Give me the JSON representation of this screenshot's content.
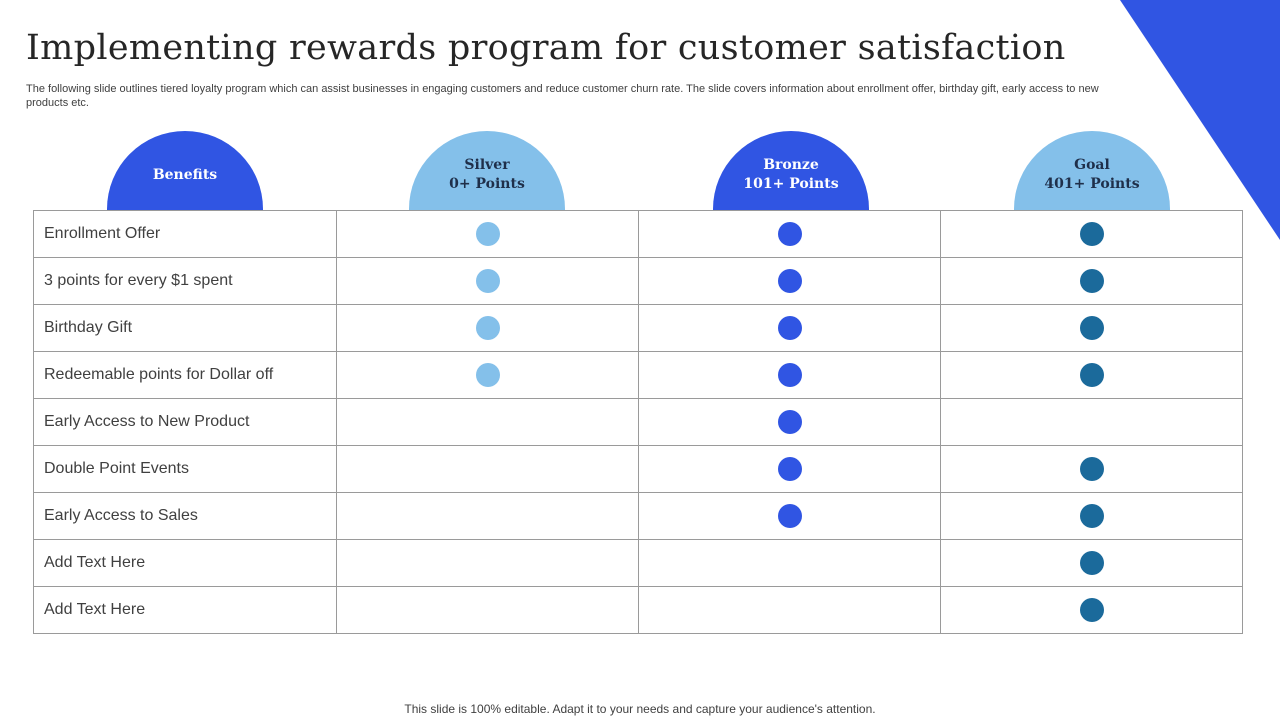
{
  "slide": {
    "title": "Implementing rewards program for customer satisfaction",
    "subtitle": "The following slide outlines tiered loyalty program which can assist businesses in engaging customers and reduce customer churn rate. The slide covers information about enrollment offer, birthday gift, early access to new  products etc.",
    "footer": "This slide is 100% editable. Adapt it to your needs and capture your audience's attention."
  },
  "colors": {
    "accent": "#3055e3",
    "silver": "#84c0ea",
    "bronze": "#3055e3",
    "gold": "#1b6a9b",
    "head_text_light": "#ffffff",
    "head_text_dark": "#1f2f4a"
  },
  "headers": {
    "benefits": "Benefits",
    "silver": "Silver\n0+ Points",
    "bronze": "Bronze\n101+ Points",
    "gold": "Goal\n401+ Points"
  },
  "icons": {
    "check_dot": "filled-circle-icon"
  },
  "rows": [
    {
      "label": "Enrollment  Offer",
      "silver": true,
      "bronze": true,
      "gold": true
    },
    {
      "label": "3 points for every  $1 spent",
      "silver": true,
      "bronze": true,
      "gold": true
    },
    {
      "label": "Birthday Gift",
      "silver": true,
      "bronze": true,
      "gold": true
    },
    {
      "label": "Redeemable points for Dollar off",
      "silver": true,
      "bronze": true,
      "gold": true
    },
    {
      "label": "Early Access to New Product",
      "silver": false,
      "bronze": true,
      "gold": false
    },
    {
      "label": "Double Point Events",
      "silver": false,
      "bronze": true,
      "gold": true
    },
    {
      "label": "Early Access to Sales",
      "silver": false,
      "bronze": true,
      "gold": true
    },
    {
      "label": "Add Text Here",
      "silver": false,
      "bronze": false,
      "gold": true
    },
    {
      "label": "Add Text Here",
      "silver": false,
      "bronze": false,
      "gold": true
    }
  ]
}
